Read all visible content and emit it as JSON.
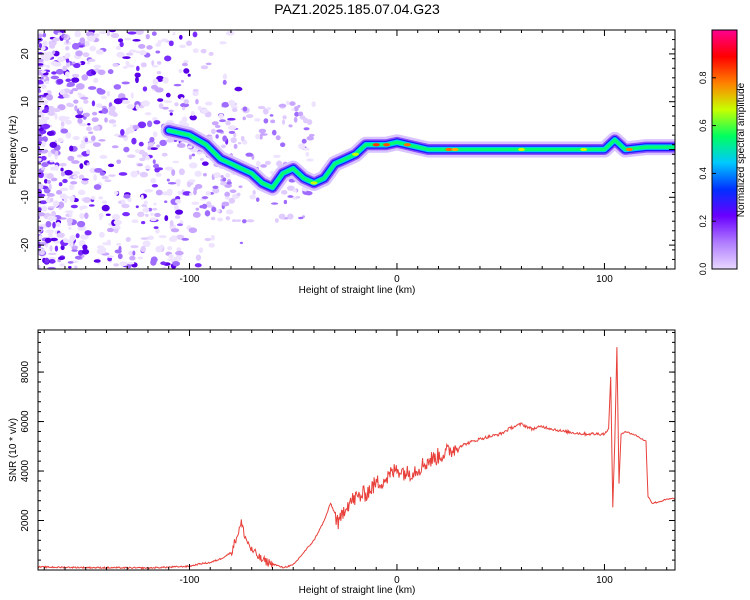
{
  "title": "PAZ1.2025.185.07.04.G23",
  "chart_data": [
    {
      "type": "heatmap",
      "title": "PAZ1.2025.185.07.04.G23",
      "xlabel": "Height of straight line (km)",
      "ylabel": "Frequency (Hz)",
      "xlim": [
        -173,
        134
      ],
      "ylim": [
        -25,
        25
      ],
      "x_ticks": [
        -100,
        0,
        100
      ],
      "y_ticks": [
        -20,
        -10,
        0,
        10,
        20
      ],
      "colorbar": {
        "label": "Normalized spectral amplitude",
        "range": [
          0,
          1
        ],
        "ticks": [
          "0.0",
          "0.2",
          "0.4",
          "0.6",
          "0.8"
        ],
        "colormap": [
          "#e8d8ff",
          "#b07cff",
          "#6a00ff",
          "#0030ff",
          "#00c8ff",
          "#00ff60",
          "#c8ff00",
          "#ff8000",
          "#ff0000",
          "#ff0090"
        ]
      },
      "ridge": {
        "x": [
          -110,
          -100,
          -92,
          -85,
          -80,
          -75,
          -70,
          -65,
          -60,
          -55,
          -50,
          -45,
          -40,
          -35,
          -30,
          -25,
          -20,
          -15,
          -10,
          -5,
          0,
          5,
          10,
          15,
          20,
          30,
          40,
          60,
          80,
          100,
          105,
          110,
          120,
          134
        ],
        "y": [
          4,
          3,
          1,
          -2,
          -3,
          -4,
          -5,
          -7,
          -8,
          -5,
          -4,
          -6,
          -7,
          -6,
          -3,
          -2,
          -1,
          1,
          1,
          1,
          1.5,
          1,
          0.5,
          0,
          0,
          0,
          0,
          0,
          0,
          0,
          2,
          0,
          0.5,
          0.5
        ]
      }
    },
    {
      "type": "line",
      "xlabel": "Height of straight line (km)",
      "ylabel": "SNR (10 * v/v)",
      "xlim": [
        -173,
        134
      ],
      "ylim": [
        0,
        9700
      ],
      "x_ticks": [
        -100,
        0,
        100
      ],
      "y_ticks": [
        2000,
        4000,
        6000,
        8000
      ],
      "color": "#e8403a",
      "series": [
        {
          "x": [
            -173,
            -150,
            -120,
            -100,
            -95,
            -90,
            -85,
            -80,
            -77,
            -75,
            -73,
            -70,
            -65,
            -60,
            -55,
            -50,
            -45,
            -40,
            -35,
            -32,
            -30,
            -28,
            -25,
            -20,
            -15,
            -10,
            -5,
            0,
            5,
            10,
            15,
            20,
            25,
            30,
            40,
            50,
            55,
            60,
            65,
            70,
            80,
            90,
            100,
            102,
            103,
            104,
            105,
            106,
            107,
            108,
            110,
            115,
            118,
            120,
            121,
            123,
            126,
            130,
            134
          ],
          "y": [
            120,
            100,
            80,
            150,
            250,
            300,
            450,
            700,
            1400,
            1900,
            1300,
            800,
            400,
            250,
            100,
            200,
            700,
            1200,
            2000,
            2700,
            2300,
            1800,
            2600,
            2900,
            3100,
            3500,
            3700,
            4100,
            3900,
            4100,
            4400,
            4600,
            4800,
            5000,
            5300,
            5500,
            5750,
            5900,
            5700,
            5800,
            5600,
            5500,
            5500,
            5700,
            7800,
            2500,
            5200,
            9000,
            3500,
            5500,
            5600,
            5450,
            5300,
            5200,
            3000,
            2700,
            2750,
            2850,
            2900
          ]
        }
      ]
    }
  ]
}
